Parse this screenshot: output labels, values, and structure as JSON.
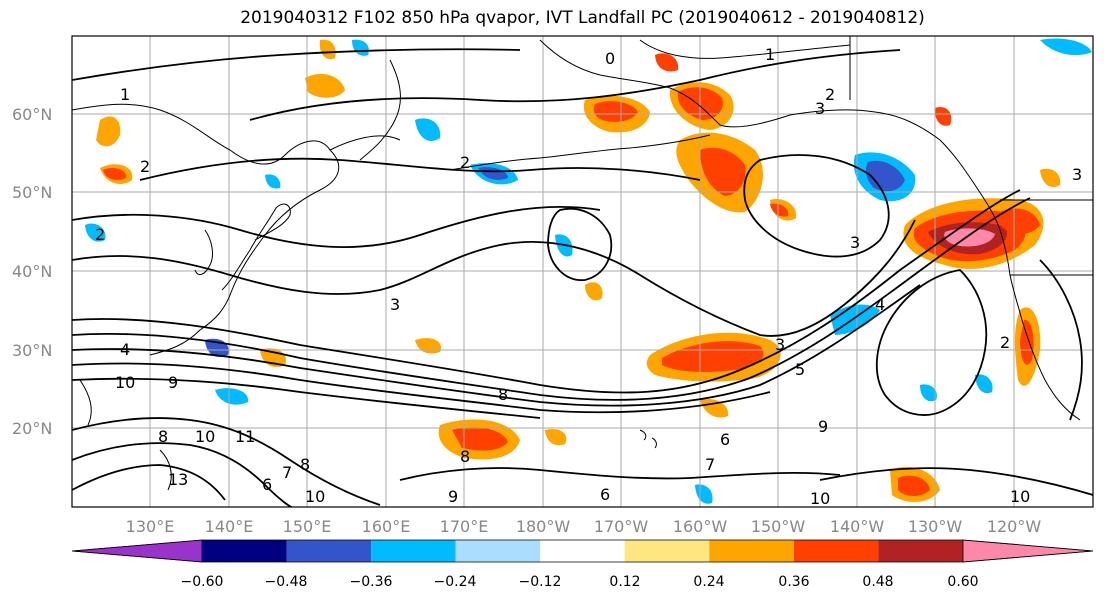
{
  "title": "2019040312 F102 850 hPa qvapor, IVT Landfall PC (2019040612 - 2019040812)",
  "latitude_labels": [
    "60°N",
    "50°N",
    "40°N",
    "30°N",
    "20°N"
  ],
  "longitude_labels": [
    "130°E",
    "140°E",
    "150°E",
    "160°E",
    "170°E",
    "180°W",
    "170°W",
    "160°W",
    "150°W",
    "140°W",
    "130°W",
    "120°W"
  ],
  "colorbar": {
    "ticks": [
      "−0.60",
      "−0.48",
      "−0.36",
      "−0.24",
      "−0.12",
      "0.12",
      "0.24",
      "0.36",
      "0.48",
      "0.60"
    ],
    "colors": [
      "#9933cc",
      "#000080",
      "#3355cc",
      "#00bbff",
      "#aaddff",
      "#ffffff",
      "#ffe680",
      "#ffa500",
      "#ff4000",
      "#b22222",
      "#ff88aa"
    ]
  },
  "contour_labels": [
    "1",
    "1",
    "2",
    "2",
    "2",
    "3",
    "3",
    "3",
    "3",
    "4",
    "2",
    "2",
    "4",
    "10",
    "9",
    "8",
    "8",
    "10",
    "11",
    "13",
    "6",
    "7",
    "8",
    "10",
    "9",
    "6",
    "10",
    "10",
    "9",
    "7",
    "3",
    "5",
    "6",
    "8",
    "0"
  ],
  "colors": {
    "coastline": "#000000",
    "grid": "#aaaaaa",
    "contour": "#000000"
  }
}
